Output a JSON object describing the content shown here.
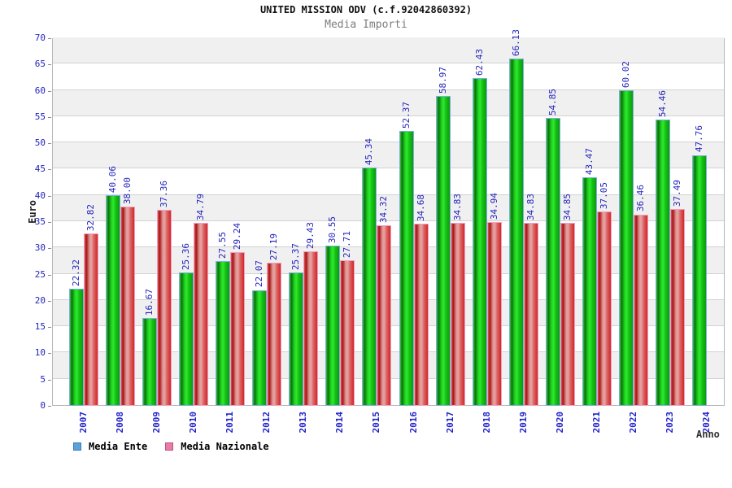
{
  "header": {
    "title": "UNITED MISSION ODV (c.f.92042860392)",
    "subtitle": "Media Importi"
  },
  "chart_data": {
    "type": "bar",
    "title": "UNITED MISSION ODV (c.f.92042860392)",
    "subtitle": "Media Importi",
    "xlabel": "Anno",
    "ylabel": "Euro",
    "ylim": [
      0,
      70
    ],
    "ytick_step": 5,
    "grid": true,
    "legend_position": "bottom-left",
    "categories": [
      "2007",
      "2008",
      "2009",
      "2010",
      "2011",
      "2012",
      "2013",
      "2014",
      "2015",
      "2016",
      "2017",
      "2018",
      "2019",
      "2020",
      "2021",
      "2022",
      "2023",
      "2024"
    ],
    "series": [
      {
        "name": "Media Ente",
        "legend_color": "#5aa2dc",
        "legend_border": "#3a7ab8",
        "bar_gradient": [
          "#3fbf3f",
          "#0b720b",
          "#1fd51f",
          "#2fe82f",
          "#15c315",
          "#0d990d"
        ],
        "bar_outline": "#7ab0e0",
        "values": [
          22.32,
          40.06,
          16.67,
          25.36,
          27.55,
          22.07,
          25.37,
          30.55,
          45.34,
          52.37,
          58.97,
          62.43,
          66.13,
          54.85,
          43.47,
          60.02,
          54.46,
          47.76
        ]
      },
      {
        "name": "Media Nazionale",
        "legend_color": "#e87ea8",
        "legend_border": "#c05080",
        "bar_gradient": [
          "#dd5858",
          "#a81414",
          "#df9595",
          "#e6a4a4",
          "#dd6666",
          "#d02828"
        ],
        "bar_outline": "#f0a0c0",
        "values": [
          32.82,
          38.0,
          37.36,
          34.79,
          29.24,
          27.19,
          29.43,
          27.71,
          34.32,
          34.68,
          34.83,
          34.94,
          34.83,
          34.85,
          37.05,
          36.46,
          37.49,
          null
        ]
      }
    ],
    "value_label_decimals": 2,
    "colors": {
      "tick_label": "#2222bf",
      "value_label": "#2424bd",
      "band_gray": "#f0f0f0",
      "band_white": "#ffffff",
      "gridline": "#d2d2d2",
      "plot_border": "#b6b6b6"
    }
  }
}
